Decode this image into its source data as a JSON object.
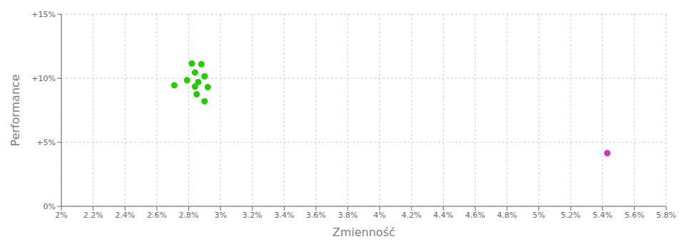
{
  "chart_data": {
    "type": "scatter",
    "xlabel": "Zmienność",
    "ylabel": "Performance",
    "xlim": [
      0.02,
      0.058
    ],
    "ylim": [
      0.0,
      0.15
    ],
    "xticks": [
      {
        "value": 0.02,
        "label": "2%"
      },
      {
        "value": 0.022,
        "label": "2.2%"
      },
      {
        "value": 0.024,
        "label": "2.4%"
      },
      {
        "value": 0.026,
        "label": "2.6%"
      },
      {
        "value": 0.028,
        "label": "2.8%"
      },
      {
        "value": 0.03,
        "label": "3%"
      },
      {
        "value": 0.032,
        "label": "3.2%"
      },
      {
        "value": 0.034,
        "label": "3.4%"
      },
      {
        "value": 0.036,
        "label": "3.6%"
      },
      {
        "value": 0.038,
        "label": "3.8%"
      },
      {
        "value": 0.04,
        "label": "4%"
      },
      {
        "value": 0.042,
        "label": "4.2%"
      },
      {
        "value": 0.044,
        "label": "4.4%"
      },
      {
        "value": 0.046,
        "label": "4.6%"
      },
      {
        "value": 0.048,
        "label": "4.8%"
      },
      {
        "value": 0.05,
        "label": "5%"
      },
      {
        "value": 0.052,
        "label": "5.2%"
      },
      {
        "value": 0.054,
        "label": "5.4%"
      },
      {
        "value": 0.056,
        "label": "5.6%"
      },
      {
        "value": 0.058,
        "label": "5.8%"
      }
    ],
    "yticks": [
      {
        "value": 0.0,
        "label": "0%"
      },
      {
        "value": 0.05,
        "label": "+5%"
      },
      {
        "value": 0.1,
        "label": "+10%"
      },
      {
        "value": 0.15,
        "label": "+15%"
      }
    ],
    "grid": true,
    "series": [
      {
        "color": "#22cc00",
        "x": [
          0.0282,
          0.0288,
          0.0284,
          0.029,
          0.0279,
          0.0286,
          0.0271,
          0.0284,
          0.0292,
          0.0285,
          0.029
        ],
        "values": [
          0.1115,
          0.111,
          0.1045,
          0.1015,
          0.0985,
          0.097,
          0.0945,
          0.0935,
          0.093,
          0.0875,
          0.082
        ]
      },
      {
        "color": "#cc33cc",
        "x": [
          0.0543
        ],
        "values": [
          0.0415
        ]
      }
    ]
  }
}
